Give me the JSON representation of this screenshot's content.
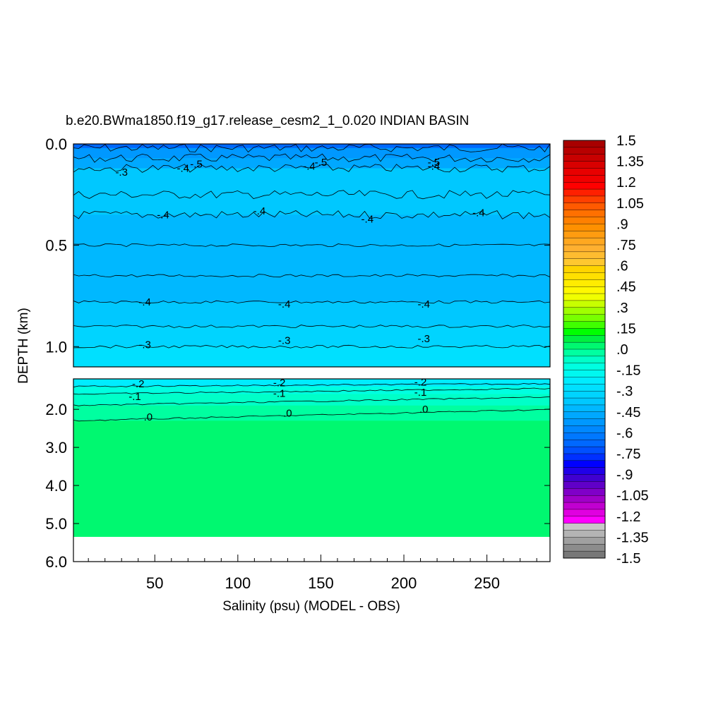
{
  "chart_data": {
    "type": "heatmap",
    "title": "b.e20.BWma1850.f19_g17.release_cesm2_1_0.020 INDIAN BASIN",
    "xlabel": "Salinity (psu) (MODEL - OBS)",
    "ylabel": "DEPTH (km)",
    "xlim": [
      1,
      288
    ],
    "x_ticks": [
      50,
      100,
      150,
      200,
      250
    ],
    "x_tick_labels": [
      "50",
      "100",
      "150",
      "200",
      "250"
    ],
    "panels": [
      {
        "name": "upper",
        "ylim": [
          0.0,
          1.1
        ],
        "y_ticks": [
          0.0,
          0.5,
          1.0
        ],
        "y_tick_labels": [
          "0.0",
          "0.5",
          "1.0"
        ],
        "bands": [
          {
            "y0": 0.0,
            "y1": 0.02,
            "value": -0.65
          },
          {
            "y0": 0.02,
            "y1": 0.07,
            "value": -0.55
          },
          {
            "y0": 0.07,
            "y1": 0.12,
            "value": -0.45
          },
          {
            "y0": 0.12,
            "y1": 0.25,
            "value": -0.35
          },
          {
            "y0": 0.25,
            "y1": 0.35,
            "value": -0.38
          },
          {
            "y0": 0.35,
            "y1": 0.5,
            "value": -0.4
          },
          {
            "y0": 0.5,
            "y1": 0.65,
            "value": -0.42
          },
          {
            "y0": 0.65,
            "y1": 0.78,
            "value": -0.4
          },
          {
            "y0": 0.78,
            "y1": 0.9,
            "value": -0.36
          },
          {
            "y0": 0.9,
            "y1": 1.0,
            "value": -0.32
          },
          {
            "y0": 1.0,
            "y1": 1.1,
            "value": -0.28
          }
        ],
        "contour_labels": [
          {
            "x": 30,
            "y": 0.14,
            "text": "-.3"
          },
          {
            "x": 67,
            "y": 0.12,
            "text": "-.4"
          },
          {
            "x": 75,
            "y": 0.1,
            "text": "-.5"
          },
          {
            "x": 143,
            "y": 0.11,
            "text": "-.4"
          },
          {
            "x": 150,
            "y": 0.09,
            "text": "-.5"
          },
          {
            "x": 218,
            "y": 0.09,
            "text": "-.5"
          },
          {
            "x": 218,
            "y": 0.11,
            "text": "-.4"
          },
          {
            "x": 55,
            "y": 0.35,
            "text": "-.4"
          },
          {
            "x": 113,
            "y": 0.33,
            "text": "-.4"
          },
          {
            "x": 178,
            "y": 0.37,
            "text": "-.4"
          },
          {
            "x": 245,
            "y": 0.34,
            "text": "-.4"
          },
          {
            "x": 44,
            "y": 0.78,
            "text": "-.4"
          },
          {
            "x": 128,
            "y": 0.79,
            "text": "-.4"
          },
          {
            "x": 212,
            "y": 0.79,
            "text": "-.4"
          },
          {
            "x": 44,
            "y": 0.99,
            "text": "-.3"
          },
          {
            "x": 128,
            "y": 0.97,
            "text": "-.3"
          },
          {
            "x": 212,
            "y": 0.96,
            "text": "-.3"
          }
        ]
      },
      {
        "name": "lower",
        "ylim": [
          1.2,
          6.0
        ],
        "y_ticks": [
          2.0,
          3.0,
          4.0,
          5.0,
          6.0
        ],
        "y_tick_labels": [
          "2.0",
          "3.0",
          "4.0",
          "5.0",
          "6.0"
        ],
        "data_bottom": 5.35,
        "bands": [
          {
            "y0": 1.2,
            "y1": 1.4,
            "value": -0.22
          },
          {
            "y0": 1.4,
            "y1": 1.6,
            "value": -0.15
          },
          {
            "y0": 1.6,
            "y1": 1.9,
            "value": -0.08
          },
          {
            "y0": 1.9,
            "y1": 2.3,
            "value": -0.02
          },
          {
            "y0": 2.3,
            "y1": 5.35,
            "value": 0.03
          }
        ],
        "contour_labels": [
          {
            "x": 40,
            "y": 1.33,
            "text": "-.2"
          },
          {
            "x": 38,
            "y": 1.66,
            "text": "-.1"
          },
          {
            "x": 125,
            "y": 1.3,
            "text": "-.2"
          },
          {
            "x": 125,
            "y": 1.58,
            "text": "-.1"
          },
          {
            "x": 210,
            "y": 1.28,
            "text": "-.2"
          },
          {
            "x": 210,
            "y": 1.55,
            "text": "-.1"
          },
          {
            "x": 46,
            "y": 2.2,
            "text": ".0"
          },
          {
            "x": 130,
            "y": 2.1,
            "text": ".0"
          },
          {
            "x": 212,
            "y": 2.0,
            "text": ".0"
          }
        ]
      }
    ],
    "colorbar": {
      "labels": [
        "1.5",
        "1.35",
        "1.2",
        "1.05",
        ".9",
        ".75",
        ".6",
        ".45",
        ".3",
        ".15",
        ".0",
        "-.15",
        "-.3",
        "-.45",
        "-.6",
        "-.75",
        "-.9",
        "-1.05",
        "-1.2",
        "-1.35",
        "-1.5"
      ],
      "colors": [
        "#a80000",
        "#b80000",
        "#c80000",
        "#d80000",
        "#e80000",
        "#f00000",
        "#ff0000",
        "#ff2000",
        "#ff4000",
        "#ff5a00",
        "#ff7000",
        "#ff8000",
        "#ff9000",
        "#ff9c10",
        "#ffa820",
        "#ffb030",
        "#ffbc30",
        "#ffc830",
        "#ffd400",
        "#ffe000",
        "#ffec00",
        "#fff800",
        "#f0ff00",
        "#c8ff00",
        "#a0ff00",
        "#78ff00",
        "#40ff00",
        "#00ff00",
        "#00f040",
        "#00f870",
        "#00ffa0",
        "#00ffc8",
        "#00ffe0",
        "#00f8f0",
        "#00ecff",
        "#00e0ff",
        "#00d4ff",
        "#00c8ff",
        "#00b8ff",
        "#00a8ff",
        "#0098ff",
        "#0088ff",
        "#0078ff",
        "#0068ff",
        "#0050ff",
        "#0030ff",
        "#0000ff",
        "#2000e8",
        "#4000d0",
        "#6000c8",
        "#8000c8",
        "#a000c8",
        "#c000d0",
        "#e000e0",
        "#ff00ff",
        "#c8c8c8",
        "#b4b4b4",
        "#a0a0a0",
        "#8c8c8c",
        "#787878"
      ]
    }
  }
}
